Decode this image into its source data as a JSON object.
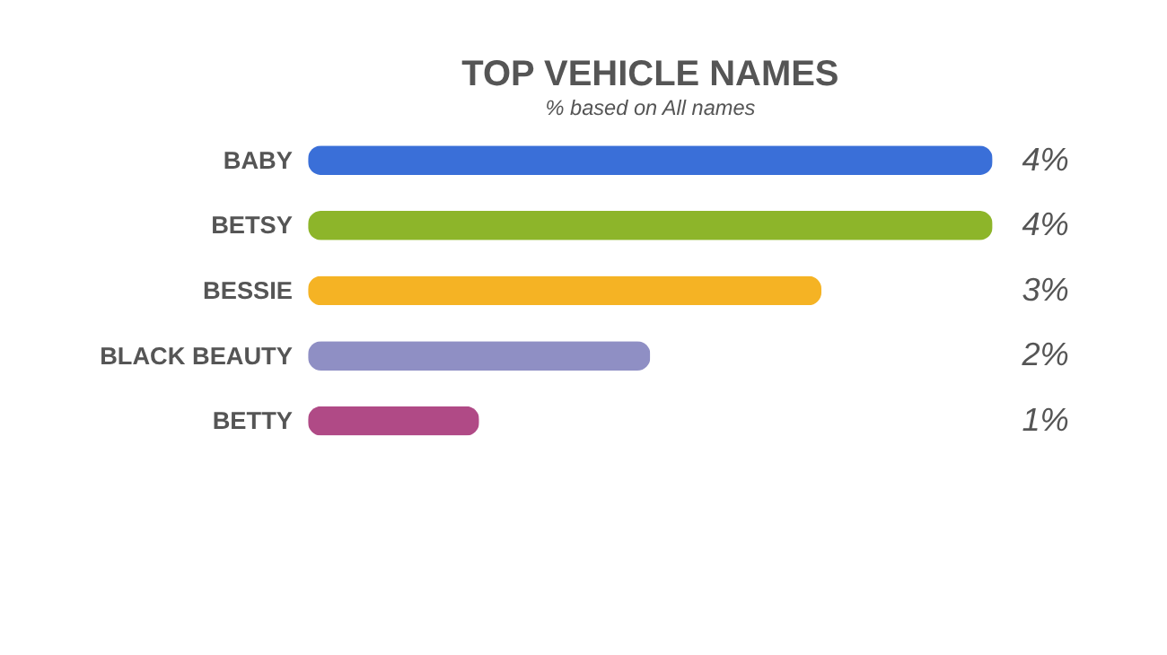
{
  "chart_data": {
    "type": "bar",
    "orientation": "horizontal",
    "title": "TOP VEHICLE NAMES",
    "subtitle": "% based on All names",
    "categories": [
      "BABY",
      "BETSY",
      "BESSIE",
      "BLACK BEAUTY",
      "BETTY"
    ],
    "values": [
      4,
      4,
      3,
      2,
      1
    ],
    "value_labels": [
      "4%",
      "4%",
      "3%",
      "2%",
      "1%"
    ],
    "colors": [
      "#3a6fd8",
      "#8db52a",
      "#f5b324",
      "#8f8fc4",
      "#b04a86"
    ],
    "grid": false
  }
}
